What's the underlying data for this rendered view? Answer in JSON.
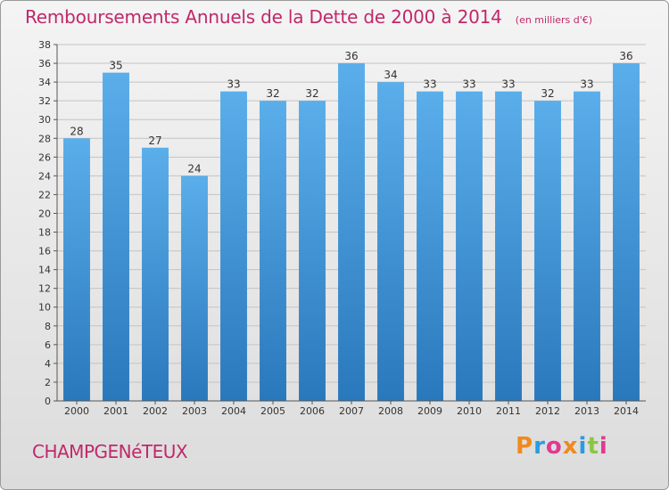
{
  "title": "Remboursements Annuels de la Dette de 2000 à 2014",
  "subtitle": "(en milliers d'€)",
  "commune": "CHAMPGENéTEUX",
  "logo": "Proxiti",
  "colors": {
    "title": "#c0286a",
    "bar_top": "#5aaeea",
    "bar_bottom": "#2a78bc",
    "background_top": "#f4f4f4",
    "background_bottom": "#dcdcdc",
    "logo_letters": [
      "#f08a1c",
      "#2a9be0",
      "#e23a8f",
      "#f08a1c",
      "#2a9be0",
      "#8cc63f",
      "#e23a8f"
    ]
  },
  "chart_data": {
    "type": "bar",
    "categories": [
      "2000",
      "2001",
      "2002",
      "2003",
      "2004",
      "2005",
      "2006",
      "2007",
      "2008",
      "2009",
      "2010",
      "2011",
      "2012",
      "2013",
      "2014"
    ],
    "values": [
      28,
      35,
      27,
      24,
      33,
      32,
      32,
      36,
      34,
      33,
      33,
      33,
      32,
      33,
      36
    ],
    "ylim": [
      0,
      38
    ],
    "yticks": [
      0,
      2,
      4,
      6,
      8,
      10,
      12,
      14,
      16,
      18,
      20,
      22,
      24,
      26,
      28,
      30,
      32,
      34,
      36,
      38
    ],
    "grid": true,
    "xlabel": "",
    "ylabel": ""
  }
}
